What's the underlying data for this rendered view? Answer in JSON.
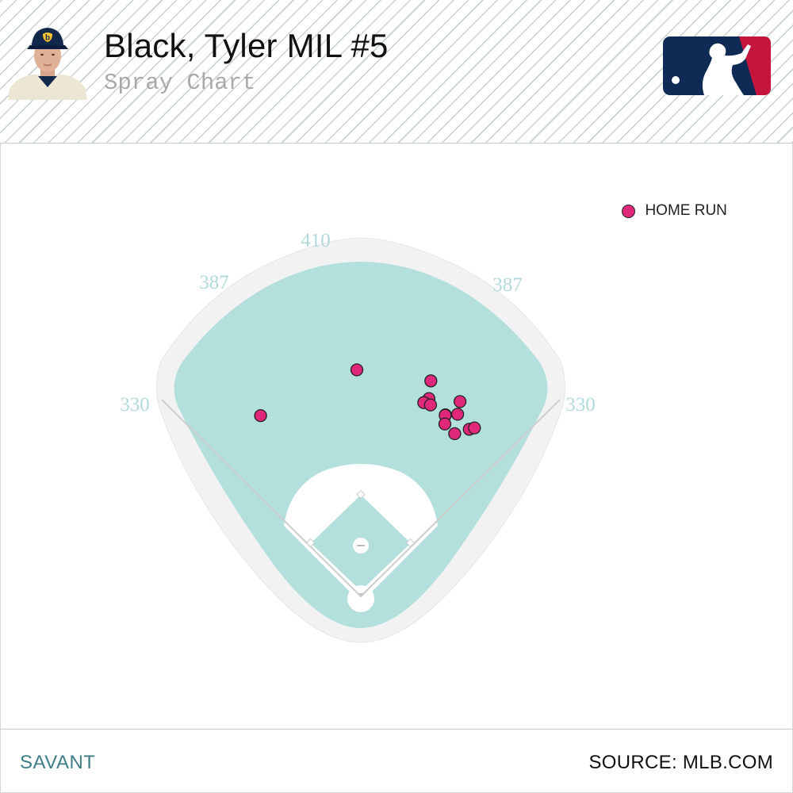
{
  "header": {
    "player_name": "Black, Tyler MIL #5",
    "subtitle": "Spray Chart"
  },
  "logos": {
    "team_cap_letter": "b",
    "league_logo_icon": "mlb-batter-logo-icon",
    "league_colors": {
      "blue": "#0e2a55",
      "red": "#c6153d"
    }
  },
  "legend": {
    "label": "HOME RUN",
    "color": "#e0287a"
  },
  "footer": {
    "brand": "SAVANT",
    "source": "SOURCE: MLB.COM"
  },
  "colors": {
    "field": "#b3e0dd",
    "infield_dirt": "#ffffff",
    "track": "#f2f2f2",
    "distance_label": "#b3dada",
    "foul_line": "#cccccc"
  },
  "chart_data": {
    "type": "scatter",
    "title": "Spray Chart",
    "units": "feet",
    "fence_distances": {
      "left_field_line": 330,
      "left_center": 387,
      "center_field": 410,
      "right_center": 387,
      "right_field_line": 330
    },
    "series": [
      {
        "name": "HOME RUN",
        "color": "#e0287a",
        "points": [
          {
            "spray_angle_deg": -29,
            "distance_ft": 416
          },
          {
            "spray_angle_deg": -1,
            "distance_ft": 456
          },
          {
            "spray_angle_deg": 18,
            "distance_ft": 456
          },
          {
            "spray_angle_deg": 19,
            "distance_ft": 421
          },
          {
            "spray_angle_deg": 18,
            "distance_ft": 410
          },
          {
            "spray_angle_deg": 20,
            "distance_ft": 410
          },
          {
            "spray_angle_deg": 27,
            "distance_ft": 440
          },
          {
            "spray_angle_deg": 25,
            "distance_ft": 403
          },
          {
            "spray_angle_deg": 25,
            "distance_ft": 402
          },
          {
            "spray_angle_deg": 28,
            "distance_ft": 415
          },
          {
            "spray_angle_deg": 26,
            "distance_ft": 386
          },
          {
            "spray_angle_deg": 30,
            "distance_ft": 378
          },
          {
            "spray_angle_deg": 33,
            "distance_ft": 401
          },
          {
            "spray_angle_deg": 34,
            "distance_ft": 409
          }
        ]
      }
    ]
  }
}
